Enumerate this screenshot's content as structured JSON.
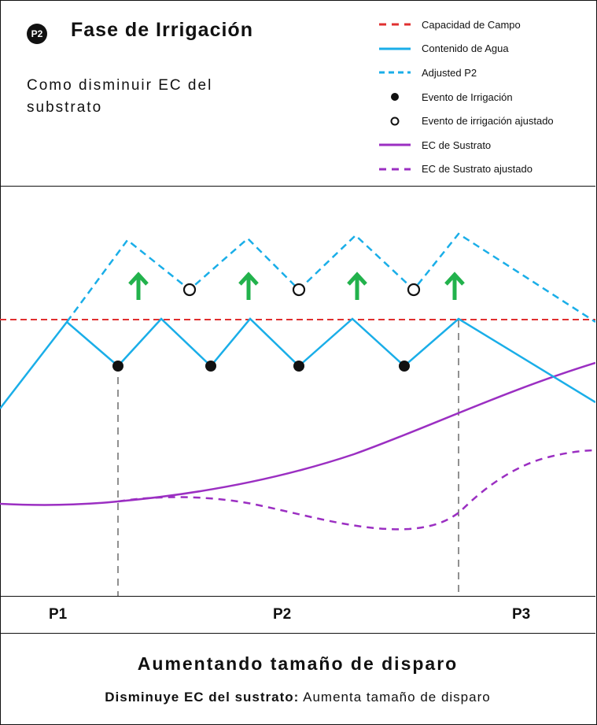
{
  "header": {
    "badge": "P2",
    "title": "Fase de Irrigación",
    "subtitle": "Como disminuir EC del substrato"
  },
  "legend": [
    {
      "label": "Capacidad de Campo",
      "icon": "red-dashed-line",
      "color": "#e03030"
    },
    {
      "label": "Contenido de Agua",
      "icon": "blue-solid-line",
      "color": "#1aaee8"
    },
    {
      "label": "Adjusted P2",
      "icon": "blue-dashed-line",
      "color": "#1aaee8"
    },
    {
      "label": "Evento de Irrigación",
      "icon": "filled-dot",
      "color": "#111111"
    },
    {
      "label": "Evento de irrigación ajustado",
      "icon": "hollow-dot",
      "color": "#111111"
    },
    {
      "label": "EC de Sustrato",
      "icon": "purple-solid-line",
      "color": "#9b2fc2"
    },
    {
      "label": "EC de Sustrato ajustado",
      "icon": "purple-dashed-line",
      "color": "#9b2fc2"
    }
  ],
  "phases": [
    "P1",
    "P2",
    "P3"
  ],
  "footer": {
    "title": "Aumentando tamaño de disparo",
    "bold": "Disminuye EC del sustrato:",
    "text": "Aumenta tamaño de disparo"
  },
  "colors": {
    "field_capacity": "#e03030",
    "water": "#1aaee8",
    "ec": "#9b2fc2",
    "arrow": "#22b24c"
  }
}
